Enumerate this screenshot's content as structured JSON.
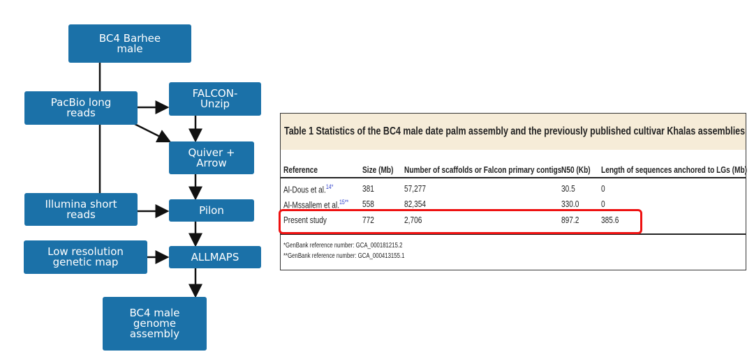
{
  "flowchart": {
    "color": "#1b71a8",
    "nodes": [
      {
        "id": "bc4",
        "label": "BC4 Barhee\nmale"
      },
      {
        "id": "pacbio",
        "label": "PacBio long\nreads"
      },
      {
        "id": "falcon",
        "label": "FALCON-\nUnzip"
      },
      {
        "id": "quiver",
        "label": "Quiver +\nArrow"
      },
      {
        "id": "illumina",
        "label": "Illumina short\nreads"
      },
      {
        "id": "pilon",
        "label": "Pilon"
      },
      {
        "id": "lowres",
        "label": "Low resolution\ngenetic map"
      },
      {
        "id": "allmaps",
        "label": "ALLMAPS"
      },
      {
        "id": "genome",
        "label": "BC4 male\ngenome\nassembly"
      }
    ]
  },
  "table": {
    "title": "Table 1 Statistics of the BC4 male date palm assembly and the previously published cultivar Khalas assemblies",
    "headers": [
      "Reference",
      "Size (Mb)",
      "Number of scaffolds or Falcon primary contigs",
      "N50 (Kb)",
      "Length of sequences anchored to LGs (Mb)"
    ],
    "rows": [
      {
        "ref": "Al-Dous et al.",
        "sup": "14*",
        "cells": [
          "381",
          "57,277",
          "30.5",
          "0"
        ]
      },
      {
        "ref": "Al-Mssallem et al.",
        "sup": "15**",
        "cells": [
          "558",
          "82,354",
          "330.0",
          "0"
        ]
      },
      {
        "ref": "Present study",
        "sup": "",
        "cells": [
          "772",
          "2,706",
          "897.2",
          "385.6"
        ],
        "highlighted": true
      }
    ],
    "footnotes": [
      "*GenBank reference number: GCA_000181215.2",
      "**GenBank reference number: GCA_000413155.1"
    ],
    "highlight_color": "#ee1111"
  }
}
